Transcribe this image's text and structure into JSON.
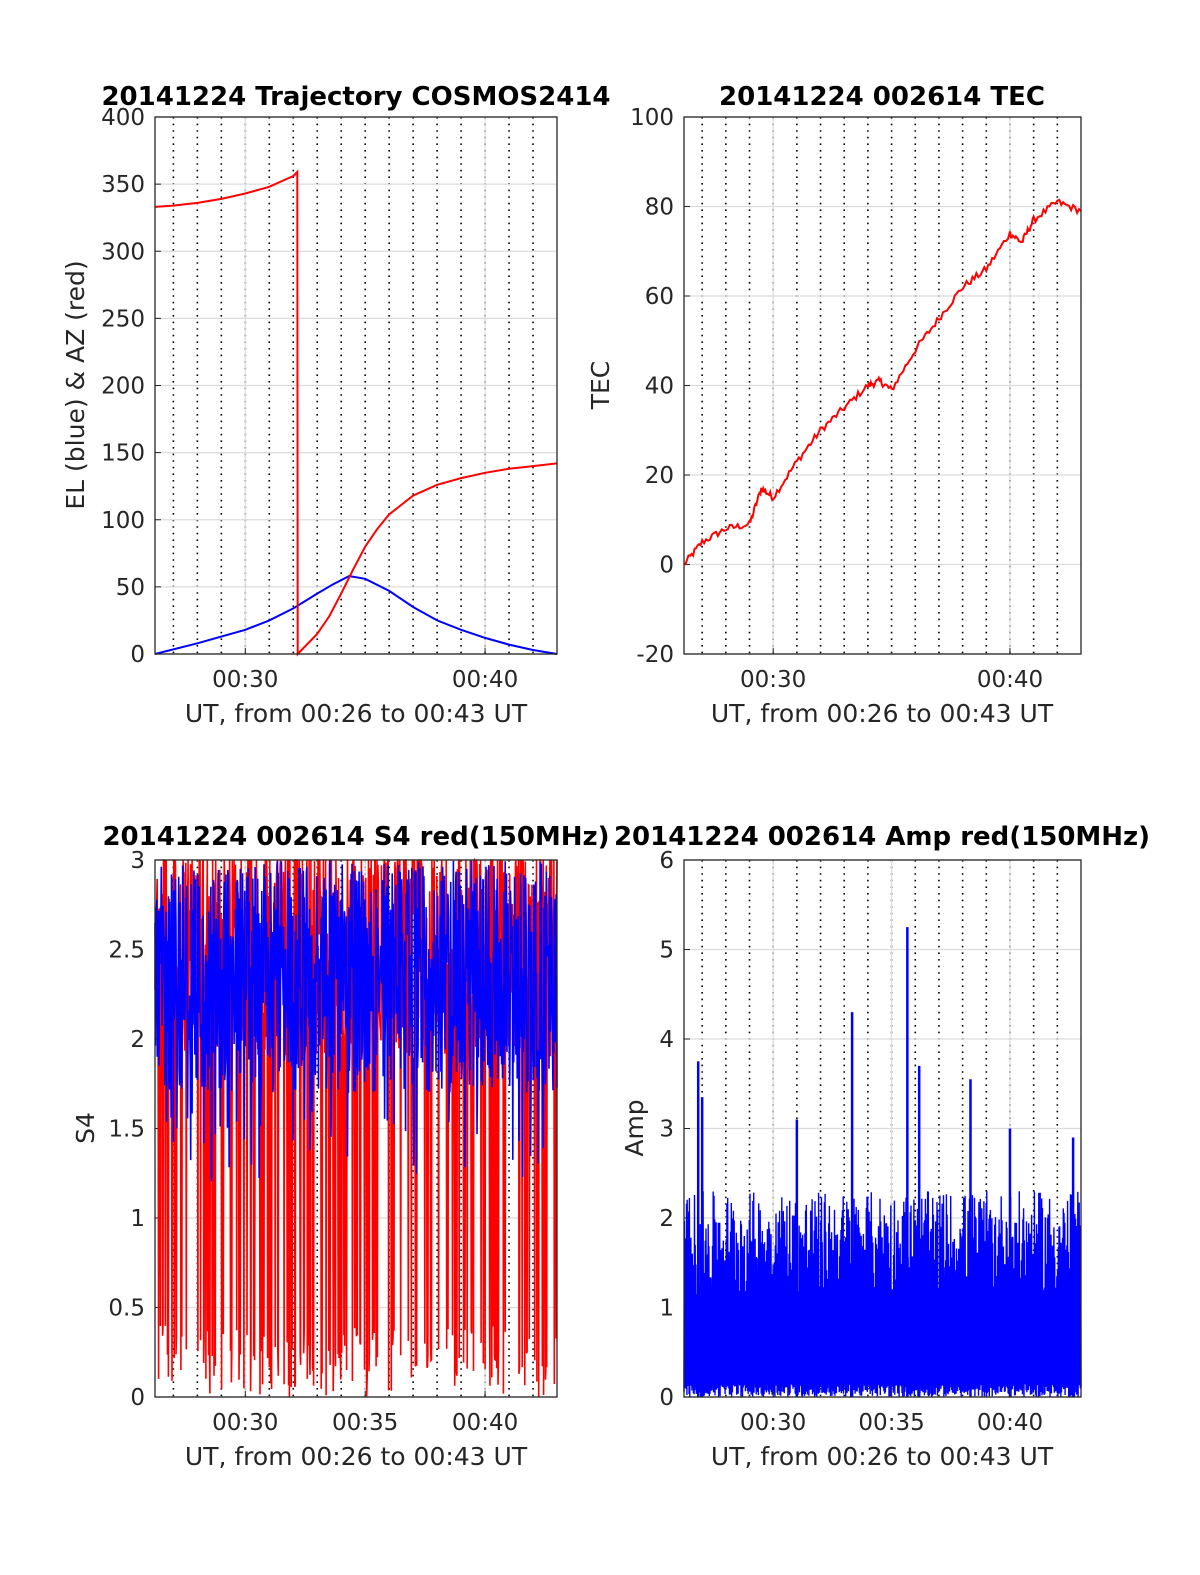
{
  "chart_data": [
    {
      "type": "line",
      "title": "20141224 Trajectory COSMOS2414",
      "xlabel": "UT, from 00:26 to 00:43 UT",
      "ylabel": "EL (blue) & AZ (red)",
      "xlim": [
        "00:26:14",
        "00:43:00"
      ],
      "ylim": [
        0,
        400
      ],
      "yticks": [
        0,
        50,
        100,
        150,
        200,
        250,
        300,
        350,
        400
      ],
      "xticks": [
        "00:30",
        "00:40"
      ],
      "grid": true,
      "series": [
        {
          "color": "#0000ff",
          "x": [
            "00:26:14",
            "00:28:00",
            "00:30:00",
            "00:31:00",
            "00:32:00",
            "00:33:00",
            "00:33:40",
            "00:34:20",
            "00:35:00",
            "00:36:00",
            "00:37:00",
            "00:38:00",
            "00:39:00",
            "00:40:00",
            "00:41:00",
            "00:42:00",
            "00:43:00"
          ],
          "values": [
            0,
            8,
            18,
            25,
            34,
            45,
            52,
            58,
            56,
            47,
            35,
            25,
            18,
            12,
            7,
            3,
            0
          ]
        },
        {
          "color": "#ff0000",
          "x": [
            "00:26:14",
            "00:27:00",
            "00:28:00",
            "00:29:00",
            "00:30:00",
            "00:31:00",
            "00:31:30",
            "00:32:00",
            "00:32:10",
            "00:32:11",
            "00:33:00",
            "00:33:30",
            "00:34:00",
            "00:34:30",
            "00:35:00",
            "00:35:30",
            "00:36:00",
            "00:37:00",
            "00:38:00",
            "00:39:00",
            "00:40:00",
            "00:41:00",
            "00:42:00",
            "00:43:00"
          ],
          "values": [
            333,
            334,
            336,
            339,
            343,
            348,
            352,
            356,
            359,
            0,
            15,
            28,
            45,
            63,
            80,
            93,
            104,
            118,
            126,
            131,
            135,
            138,
            140,
            142
          ]
        }
      ]
    },
    {
      "type": "line",
      "title": "20141224 002614 TEC",
      "xlabel": "UT, from 00:26 to 00:43 UT",
      "ylabel": "TEC",
      "xlim": [
        "00:26:14",
        "00:43:00"
      ],
      "ylim": [
        -20,
        100
      ],
      "yticks": [
        -20,
        0,
        20,
        40,
        60,
        80,
        100
      ],
      "xticks": [
        "00:30",
        "00:40"
      ],
      "grid": true,
      "series": [
        {
          "color": "#ff0000",
          "x": [
            "00:26:14",
            "00:27:00",
            "00:28:00",
            "00:29:00",
            "00:29:30",
            "00:30:00",
            "00:31:00",
            "00:32:00",
            "00:33:00",
            "00:34:00",
            "00:34:30",
            "00:35:00",
            "00:36:00",
            "00:37:00",
            "00:38:00",
            "00:39:00",
            "00:40:00",
            "00:40:30",
            "00:41:00",
            "00:42:00",
            "00:43:00"
          ],
          "values": [
            0,
            5,
            8,
            9,
            17,
            15,
            23,
            30,
            35,
            40,
            41,
            39,
            48,
            55,
            62,
            66,
            74,
            72,
            77,
            81,
            79
          ]
        }
      ]
    },
    {
      "type": "line",
      "title": "20141224 002614 S4 red(150MHz)",
      "xlabel": "UT, from 00:26 to 00:43 UT",
      "ylabel": "S4",
      "xlim": [
        "00:26:14",
        "00:43:00"
      ],
      "ylim": [
        0,
        3
      ],
      "yticks": [
        0,
        0.5,
        1,
        1.5,
        2,
        2.5,
        3
      ],
      "xticks": [
        "00:30",
        "00:35",
        "00:40"
      ],
      "grid": true,
      "series": [
        {
          "color": "#ff0000",
          "description_range": [
            0,
            3
          ],
          "typical": 2.2
        },
        {
          "color": "#0000ff",
          "description_range": [
            1,
            3
          ],
          "typical": 2.2
        }
      ]
    },
    {
      "type": "line",
      "title": "20141224 002614 Amp red(150MHz)",
      "xlabel": "UT, from 00:26 to 00:43 UT",
      "ylabel": "Amp",
      "xlim": [
        "00:26:14",
        "00:43:00"
      ],
      "ylim": [
        0,
        6
      ],
      "yticks": [
        0,
        1,
        2,
        3,
        4,
        5,
        6
      ],
      "xticks": [
        "00:30",
        "00:35",
        "00:40"
      ],
      "grid": true,
      "series": [
        {
          "color": "#0000ff",
          "peaks_x": [
            "00:26:50",
            "00:27:00",
            "00:31:00",
            "00:33:20",
            "00:35:40",
            "00:36:10",
            "00:38:20",
            "00:40:00",
            "00:42:40"
          ],
          "peaks_y": [
            3.75,
            3.35,
            3.1,
            4.3,
            5.25,
            3.7,
            3.55,
            3.0,
            2.9
          ],
          "typical": 2.1
        }
      ]
    }
  ]
}
